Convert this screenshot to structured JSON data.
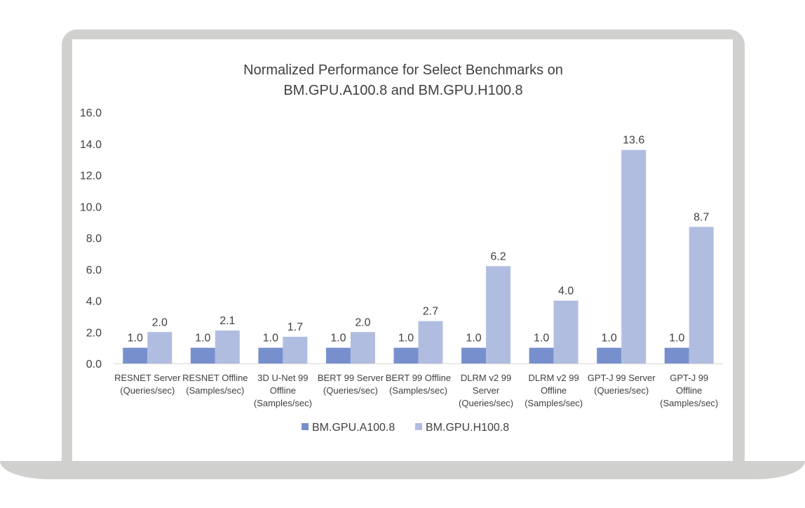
{
  "chart_data": {
    "type": "bar",
    "title": [
      "Normalized Performance for Select Benchmarks on",
      "BM.GPU.A100.8 and BM.GPU.H100.8"
    ],
    "categories": [
      [
        "RESNET Server",
        "(Queries/sec)"
      ],
      [
        "RESNET Offline",
        "(Samples/sec)"
      ],
      [
        "3D U-Net 99",
        "Offline",
        "(Samples/sec)"
      ],
      [
        "BERT 99 Server",
        "(Queries/sec)"
      ],
      [
        "BERT 99 Offline",
        "(Samples/sec)"
      ],
      [
        "DLRM v2 99",
        "Server",
        "(Queries/sec)"
      ],
      [
        "DLRM v2 99",
        "Offline",
        "(Samples/sec)"
      ],
      [
        "GPT-J 99 Server",
        "(Queries/sec)"
      ],
      [
        "GPT-J 99",
        "Offline",
        "(Samples/sec)"
      ]
    ],
    "series": [
      {
        "name": "BM.GPU.A100.8",
        "color": "#7790cd",
        "values": [
          1.0,
          1.0,
          1.0,
          1.0,
          1.0,
          1.0,
          1.0,
          1.0,
          1.0
        ]
      },
      {
        "name": "BM.GPU.H100.8",
        "color": "#b1bde0",
        "values": [
          2.0,
          2.1,
          1.7,
          2.0,
          2.7,
          6.2,
          4.0,
          13.6,
          8.7
        ]
      }
    ],
    "ylim": [
      0,
      16
    ],
    "yticks": [
      "0.0",
      "2.0",
      "4.0",
      "6.0",
      "8.0",
      "10.0",
      "12.0",
      "14.0",
      "16.0"
    ],
    "grid": false,
    "legend_position": "bottom",
    "data_labels": true
  }
}
